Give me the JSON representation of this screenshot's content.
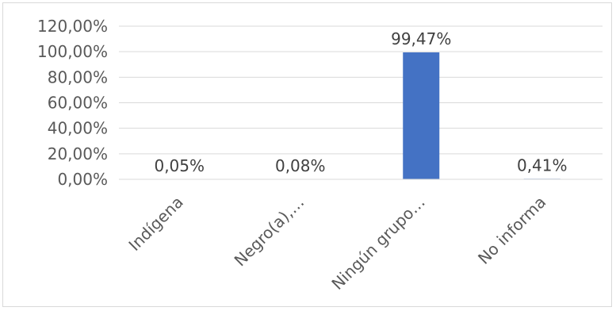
{
  "chart_data": {
    "type": "bar",
    "categories": [
      "Indígena",
      "Negro(a),…",
      "Ningún grupo…",
      "No informa"
    ],
    "values": [
      0.05,
      0.08,
      99.47,
      0.41
    ],
    "data_labels": [
      "0,05%",
      "0,08%",
      "99,47%",
      "0,41%"
    ],
    "y_tick_labels": [
      "0,00%",
      "20,00%",
      "40,00%",
      "60,00%",
      "80,00%",
      "100,00%",
      "120,00%"
    ],
    "ylim": [
      0,
      120
    ],
    "grid": true,
    "legend": "none",
    "bar_color": "#4472c4",
    "grid_color": "#d9d9d9"
  }
}
